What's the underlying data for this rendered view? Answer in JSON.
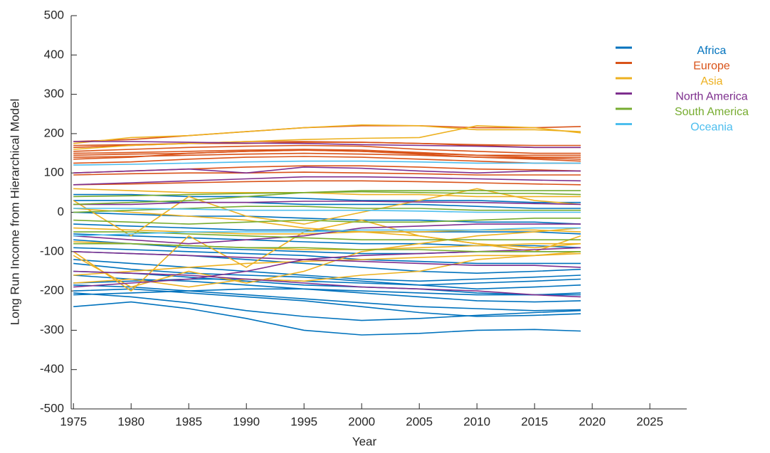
{
  "chart_data": {
    "type": "line",
    "x_label": "Year",
    "y_label": "Long Run Income from Hierarchical Model",
    "x": [
      1975,
      1980,
      1985,
      1990,
      1995,
      2000,
      2005,
      2010,
      2015,
      2019
    ],
    "xlim": [
      1974.8,
      2028.2
    ],
    "xticks": [
      1975,
      1980,
      1985,
      1990,
      1995,
      2000,
      2005,
      2010,
      2015,
      2020,
      2025
    ],
    "ylim": [
      -500,
      500
    ],
    "yticks": [
      -500,
      -400,
      -300,
      -200,
      -100,
      0,
      100,
      200,
      300,
      400,
      500
    ],
    "legend_position": "right",
    "series": [
      {
        "name": "Africa",
        "color": "#0072BD",
        "values": [
          [
            -240,
            -228,
            -245,
            -270,
            -300,
            -312,
            -308,
            -300,
            -298,
            -302
          ],
          [
            -205,
            -215,
            -230,
            -250,
            -265,
            -275,
            -270,
            -262,
            -255,
            -250
          ],
          [
            -200,
            -195,
            -205,
            -215,
            -225,
            -240,
            -255,
            -265,
            -262,
            -258
          ],
          [
            -185,
            -190,
            -200,
            -210,
            -220,
            -230,
            -240,
            -245,
            -250,
            -248
          ],
          [
            -160,
            -170,
            -175,
            -185,
            -195,
            -205,
            -215,
            -225,
            -228,
            -225
          ],
          [
            -150,
            -155,
            -165,
            -175,
            -185,
            -190,
            -195,
            -205,
            -210,
            -210
          ],
          [
            -130,
            -145,
            -155,
            -160,
            -165,
            -175,
            -185,
            -195,
            -190,
            -185
          ],
          [
            -120,
            -130,
            -140,
            -150,
            -160,
            -170,
            -175,
            -170,
            -165,
            -160
          ],
          [
            -100,
            -105,
            -110,
            -120,
            -130,
            -140,
            -150,
            -155,
            -150,
            -145
          ],
          [
            -90,
            -95,
            -100,
            -105,
            -110,
            -120,
            -125,
            -130,
            -130,
            -130
          ],
          [
            -70,
            -80,
            -90,
            -95,
            -100,
            -105,
            -105,
            -100,
            -100,
            -100
          ],
          [
            -55,
            -60,
            -65,
            -70,
            -75,
            -80,
            -80,
            -85,
            -85,
            -90
          ],
          [
            -30,
            -35,
            -40,
            -45,
            -45,
            -50,
            -50,
            -50,
            -50,
            -55
          ],
          [
            0,
            -5,
            -10,
            -10,
            -15,
            -20,
            -20,
            -25,
            -25,
            -30
          ],
          [
            30,
            30,
            25,
            25,
            20,
            20,
            20,
            15,
            10,
            10
          ],
          [
            45,
            45,
            40,
            40,
            35,
            30,
            30,
            30,
            25,
            25
          ],
          [
            -210,
            -205,
            -200,
            -195,
            -195,
            -200,
            -205,
            -210,
            -210,
            -205
          ],
          [
            -180,
            -175,
            -170,
            -170,
            -175,
            -180,
            -185,
            -180,
            -175,
            -170
          ]
        ]
      },
      {
        "name": "Europe",
        "color": "#D95319",
        "values": [
          [
            180,
            185,
            195,
            205,
            215,
            220,
            220,
            215,
            215,
            218
          ],
          [
            165,
            170,
            175,
            180,
            180,
            178,
            175,
            170,
            165,
            165
          ],
          [
            155,
            160,
            165,
            168,
            170,
            168,
            160,
            155,
            150,
            150
          ],
          [
            150,
            152,
            155,
            158,
            160,
            158,
            152,
            145,
            145,
            145
          ],
          [
            145,
            148,
            150,
            155,
            158,
            155,
            150,
            145,
            140,
            140
          ],
          [
            140,
            142,
            145,
            148,
            150,
            148,
            145,
            140,
            138,
            135
          ],
          [
            125,
            128,
            135,
            140,
            142,
            140,
            135,
            130,
            125,
            125
          ],
          [
            100,
            105,
            110,
            115,
            118,
            118,
            115,
            110,
            108,
            105
          ],
          [
            95,
            98,
            100,
            100,
            102,
            100,
            98,
            95,
            95,
            95
          ],
          [
            70,
            72,
            75,
            78,
            80,
            80,
            78,
            75,
            72,
            70
          ],
          [
            170,
            172,
            175,
            175,
            178,
            178,
            175,
            172,
            170,
            170
          ],
          [
            135,
            140,
            150,
            155,
            158,
            155,
            148,
            140,
            135,
            130
          ]
        ]
      },
      {
        "name": "Asia",
        "color": "#EDB120",
        "values": [
          [
            175,
            190,
            195,
            205,
            215,
            222,
            220,
            210,
            210,
            205
          ],
          [
            160,
            170,
            175,
            180,
            185,
            188,
            190,
            220,
            215,
            202
          ],
          [
            30,
            -60,
            40,
            -10,
            -30,
            0,
            30,
            60,
            30,
            20
          ],
          [
            -100,
            -200,
            -60,
            -140,
            -50,
            -20,
            -60,
            -80,
            -100,
            -60
          ],
          [
            -110,
            -190,
            -150,
            -180,
            -150,
            -100,
            -80,
            -60,
            -50,
            -40
          ],
          [
            -180,
            -170,
            -190,
            -170,
            -175,
            -160,
            -150,
            -120,
            -110,
            -100
          ],
          [
            10,
            0,
            -10,
            -20,
            -40,
            -50,
            -60,
            -80,
            -90,
            -80
          ],
          [
            60,
            55,
            50,
            50,
            50,
            45,
            45,
            40,
            40,
            40
          ],
          [
            -40,
            -45,
            -50,
            -55,
            -55,
            -50,
            -50,
            -45,
            -45,
            -50
          ],
          [
            -160,
            -150,
            -140,
            -130,
            -125,
            -120,
            -115,
            -110,
            -110,
            -105
          ],
          [
            -75,
            -80,
            -85,
            -90,
            -95,
            -95,
            -90,
            -85,
            -80,
            -80
          ]
        ]
      },
      {
        "name": "North America",
        "color": "#7E2F8E",
        "values": [
          [
            180,
            180,
            178,
            176,
            175,
            172,
            170,
            168,
            165,
            165
          ],
          [
            100,
            105,
            110,
            100,
            115,
            112,
            105,
            100,
            105,
            105
          ],
          [
            70,
            75,
            80,
            85,
            90,
            90,
            88,
            85,
            82,
            80
          ],
          [
            20,
            20,
            25,
            25,
            28,
            28,
            26,
            25,
            22,
            20
          ],
          [
            -60,
            -70,
            -80,
            -70,
            -60,
            -40,
            -35,
            -30,
            -30,
            -30
          ],
          [
            -190,
            -180,
            -170,
            -150,
            -120,
            -110,
            -105,
            -100,
            -95,
            -90
          ],
          [
            -150,
            -155,
            -160,
            -170,
            -180,
            -190,
            -195,
            -200,
            -210,
            -215
          ],
          [
            -100,
            -105,
            -110,
            -115,
            -120,
            -125,
            -130,
            -135,
            -135,
            -140
          ]
        ]
      },
      {
        "name": "South America",
        "color": "#77AC30",
        "values": [
          [
            20,
            25,
            30,
            40,
            50,
            55,
            55,
            55,
            55,
            55
          ],
          [
            0,
            5,
            10,
            15,
            15,
            10,
            10,
            5,
            5,
            5
          ],
          [
            -20,
            -25,
            -30,
            -25,
            -20,
            -25,
            -25,
            -20,
            -15,
            -15
          ],
          [
            -50,
            -50,
            -55,
            -60,
            -65,
            -70,
            -70,
            -70,
            -70,
            -70
          ],
          [
            -80,
            -80,
            -85,
            -90,
            -90,
            -95,
            -95,
            -100,
            -100,
            -100
          ],
          [
            40,
            42,
            45,
            48,
            50,
            52,
            50,
            48,
            48,
            45
          ]
        ]
      },
      {
        "name": "Oceania",
        "color": "#4DBEEE",
        "values": [
          [
            120,
            122,
            125,
            128,
            130,
            130,
            128,
            125,
            125,
            125
          ],
          [
            -60,
            -55,
            -50,
            -50,
            -50,
            -45,
            -45,
            -45,
            -40,
            -40
          ],
          [
            10,
            10,
            8,
            5,
            5,
            5,
            3,
            0,
            0,
            0
          ]
        ]
      }
    ]
  }
}
